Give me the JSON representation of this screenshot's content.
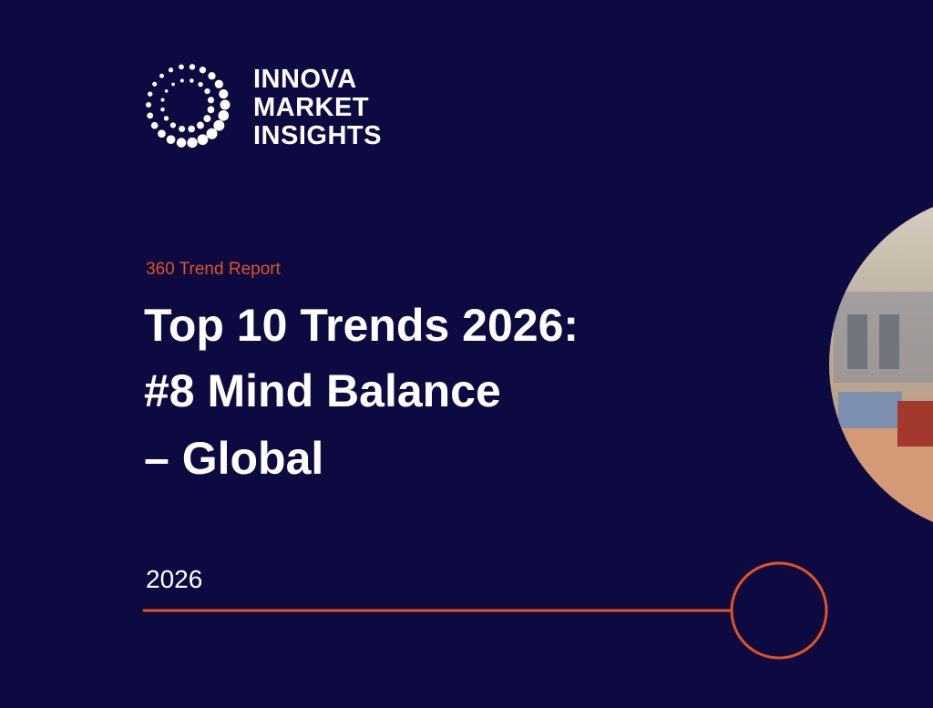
{
  "logo": {
    "lines": [
      "INNOVA",
      "MARKET",
      "INSIGHTS"
    ]
  },
  "report_type": "360 Trend Report",
  "title": {
    "lines": [
      "Top 10 Trends 2026:",
      "#8 Mind Balance",
      "– Global"
    ]
  },
  "year": "2026"
}
